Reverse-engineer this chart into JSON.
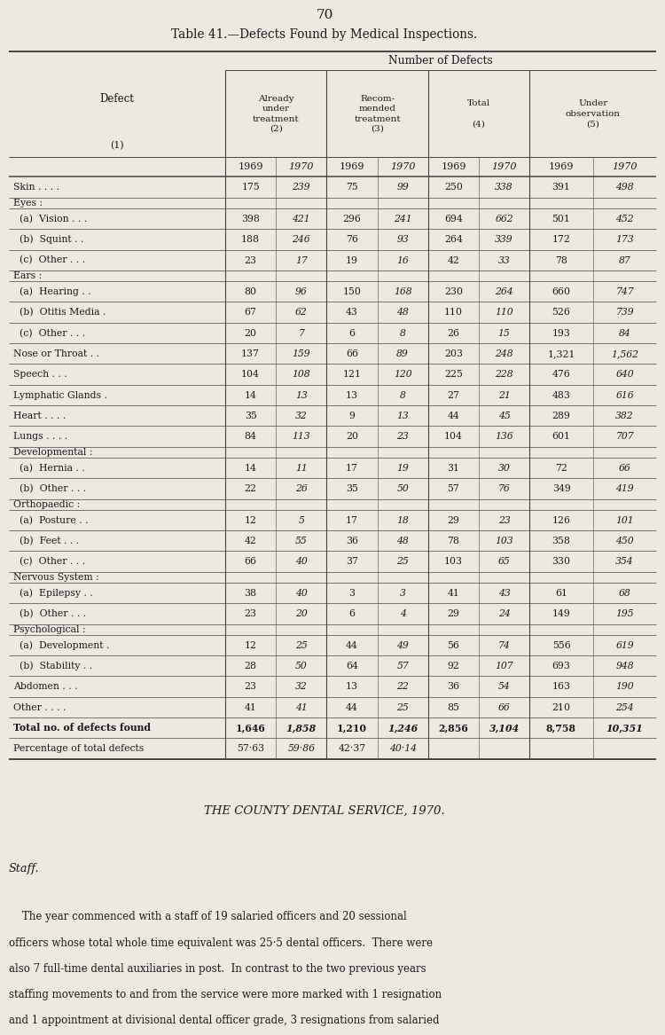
{
  "page_number": "70",
  "title_prefix": "T",
  "title_main": "able 41.—",
  "title_caps": "D",
  "title_rest1": "efects ",
  "title_caps2": "F",
  "title_rest2": "ound by ",
  "title_caps3": "M",
  "title_rest3": "edical ",
  "title_caps4": "I",
  "title_rest4": "nspections.",
  "title_full": "Table 41.—Defects Found by Medical Inspections.",
  "year_labels": [
    "1969",
    "1970",
    "1969",
    "1970",
    "1969",
    "1970",
    "1969",
    "1970"
  ],
  "rows": [
    {
      "label": "Skin . . . .",
      "indent": 0,
      "group_header": false,
      "vals": [
        "175",
        "239",
        "75",
        "99",
        "250",
        "338",
        "391",
        "498"
      ]
    },
    {
      "label": "Eyes :",
      "indent": 0,
      "group_header": true,
      "vals": null
    },
    {
      "label": "  (a)  Vision . . .",
      "indent": 1,
      "group_header": false,
      "vals": [
        "398",
        "421",
        "296",
        "241",
        "694",
        "662",
        "501",
        "452"
      ]
    },
    {
      "label": "  (b)  Squint . .",
      "indent": 1,
      "group_header": false,
      "vals": [
        "188",
        "246",
        "76",
        "93",
        "264",
        "339",
        "172",
        "173"
      ]
    },
    {
      "label": "  (c)  Other . . .",
      "indent": 1,
      "group_header": false,
      "vals": [
        "23",
        "17",
        "19",
        "16",
        "42",
        "33",
        "78",
        "87"
      ]
    },
    {
      "label": "Ears :",
      "indent": 0,
      "group_header": true,
      "vals": null
    },
    {
      "label": "  (a)  Hearing . .",
      "indent": 1,
      "group_header": false,
      "vals": [
        "80",
        "96",
        "150",
        "168",
        "230",
        "264",
        "660",
        "747"
      ]
    },
    {
      "label": "  (b)  Otitis Media .",
      "indent": 1,
      "group_header": false,
      "vals": [
        "67",
        "62",
        "43",
        "48",
        "110",
        "110",
        "526",
        "739"
      ]
    },
    {
      "label": "  (c)  Other . . .",
      "indent": 1,
      "group_header": false,
      "vals": [
        "20",
        "7",
        "6",
        "8",
        "26",
        "15",
        "193",
        "84"
      ]
    },
    {
      "label": "Nose or Throat . .",
      "indent": 0,
      "group_header": false,
      "vals": [
        "137",
        "159",
        "66",
        "89",
        "203",
        "248",
        "1,321",
        "1,562"
      ]
    },
    {
      "label": "Speech . . .",
      "indent": 0,
      "group_header": false,
      "vals": [
        "104",
        "108",
        "121",
        "120",
        "225",
        "228",
        "476",
        "640"
      ]
    },
    {
      "label": "Lymphatic Glands .",
      "indent": 0,
      "group_header": false,
      "vals": [
        "14",
        "13",
        "13",
        "8",
        "27",
        "21",
        "483",
        "616"
      ]
    },
    {
      "label": "Heart . . . .",
      "indent": 0,
      "group_header": false,
      "vals": [
        "35",
        "32",
        "9",
        "13",
        "44",
        "45",
        "289",
        "382"
      ]
    },
    {
      "label": "Lungs . . . .",
      "indent": 0,
      "group_header": false,
      "vals": [
        "84",
        "113",
        "20",
        "23",
        "104",
        "136",
        "601",
        "707"
      ]
    },
    {
      "label": "Developmental :",
      "indent": 0,
      "group_header": true,
      "vals": null
    },
    {
      "label": "  (a)  Hernia . .",
      "indent": 1,
      "group_header": false,
      "vals": [
        "14",
        "11",
        "17",
        "19",
        "31",
        "30",
        "72",
        "66"
      ]
    },
    {
      "label": "  (b)  Other . . .",
      "indent": 1,
      "group_header": false,
      "vals": [
        "22",
        "26",
        "35",
        "50",
        "57",
        "76",
        "349",
        "419"
      ]
    },
    {
      "label": "Orthopaedic :",
      "indent": 0,
      "group_header": true,
      "vals": null
    },
    {
      "label": "  (a)  Posture . .",
      "indent": 1,
      "group_header": false,
      "vals": [
        "12",
        "5",
        "17",
        "18",
        "29",
        "23",
        "126",
        "101"
      ]
    },
    {
      "label": "  (b)  Feet . . .",
      "indent": 1,
      "group_header": false,
      "vals": [
        "42",
        "55",
        "36",
        "48",
        "78",
        "103",
        "358",
        "450"
      ]
    },
    {
      "label": "  (c)  Other . . .",
      "indent": 1,
      "group_header": false,
      "vals": [
        "66",
        "40",
        "37",
        "25",
        "103",
        "65",
        "330",
        "354"
      ]
    },
    {
      "label": "Nervous System :",
      "indent": 0,
      "group_header": true,
      "vals": null
    },
    {
      "label": "  (a)  Epilepsy . .",
      "indent": 1,
      "group_header": false,
      "vals": [
        "38",
        "40",
        "3",
        "3",
        "41",
        "43",
        "61",
        "68"
      ]
    },
    {
      "label": "  (b)  Other . . .",
      "indent": 1,
      "group_header": false,
      "vals": [
        "23",
        "20",
        "6",
        "4",
        "29",
        "24",
        "149",
        "195"
      ]
    },
    {
      "label": "Psychological :",
      "indent": 0,
      "group_header": true,
      "vals": null
    },
    {
      "label": "  (a)  Development .",
      "indent": 1,
      "group_header": false,
      "vals": [
        "12",
        "25",
        "44",
        "49",
        "56",
        "74",
        "556",
        "619"
      ]
    },
    {
      "label": "  (b)  Stability . .",
      "indent": 1,
      "group_header": false,
      "vals": [
        "28",
        "50",
        "64",
        "57",
        "92",
        "107",
        "693",
        "948"
      ]
    },
    {
      "label": "Abdomen . . .",
      "indent": 0,
      "group_header": false,
      "vals": [
        "23",
        "32",
        "13",
        "22",
        "36",
        "54",
        "163",
        "190"
      ]
    },
    {
      "label": "Other . . . .",
      "indent": 0,
      "group_header": false,
      "vals": [
        "41",
        "41",
        "44",
        "25",
        "85",
        "66",
        "210",
        "254"
      ]
    },
    {
      "label": "Total no. of defects found",
      "indent": 0,
      "group_header": false,
      "bold": true,
      "vals": [
        "1,646",
        "1,858",
        "1,210",
        "1,246",
        "2,856",
        "3,104",
        "8,758",
        "10,351"
      ]
    },
    {
      "label": "Percentage of total defects",
      "indent": 0,
      "group_header": false,
      "bold": false,
      "vals": [
        "57·63",
        "59·86",
        "42·37",
        "40·14",
        "",
        "",
        "",
        ""
      ]
    }
  ],
  "dental_service_title": "THE COUNTY DENTAL SERVICE, 1970.",
  "staff_heading": "Staff.",
  "body_lines": [
    "    The year commenced with a staff of 19 salaried officers and 20 sessional",
    "officers whose total whole time equivalent was 25·5 dental officers.  There were",
    "also 7 full-time dental auxiliaries in post.  In contrast to the two previous years",
    "staffing movements to and from the service were more marked with 1 resignation",
    "and 1 appointment at divisional dental officer grade, 3 resignations from salaried"
  ],
  "bg_color": "#ede9e0",
  "text_color": "#1a1a1a",
  "line_color": "#444444"
}
